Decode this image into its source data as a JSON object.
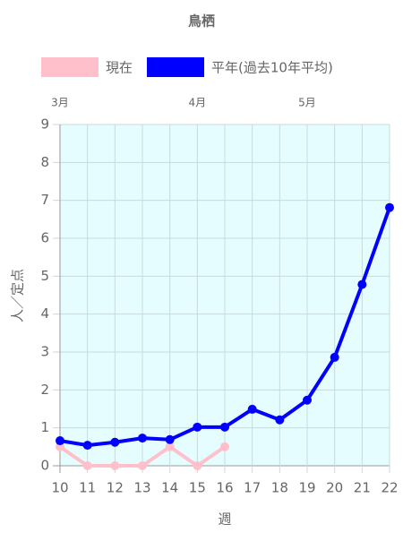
{
  "chart_data": {
    "type": "line",
    "title": "鳥栖",
    "x": [
      10,
      11,
      12,
      13,
      14,
      15,
      16,
      17,
      18,
      19,
      20,
      21,
      22
    ],
    "xlim": [
      10,
      22
    ],
    "xticks": [
      10,
      11,
      12,
      13,
      14,
      15,
      16,
      17,
      18,
      19,
      20,
      21,
      22
    ],
    "top_labels": [
      "3月",
      null,
      null,
      null,
      null,
      "4月",
      null,
      null,
      null,
      "5月",
      null,
      null,
      null
    ],
    "xlabel": "週",
    "ylabel": "人／定点",
    "ylim": [
      0,
      9
    ],
    "yticks": [
      0,
      1,
      2,
      3,
      4,
      5,
      6,
      7,
      8,
      9
    ],
    "grid": true,
    "series": [
      {
        "name": "現在",
        "color": "#ffc0cb",
        "values": [
          0.5,
          0,
          0,
          0,
          0.5,
          0,
          0.5,
          null,
          null,
          null,
          null,
          null,
          null
        ]
      },
      {
        "name": "平年(過去10年平均)",
        "color": "#0000ff",
        "values": [
          0.66,
          0.54,
          0.62,
          0.73,
          0.69,
          1.02,
          1.02,
          1.49,
          1.21,
          1.73,
          2.86,
          4.78,
          6.81
        ]
      }
    ]
  }
}
